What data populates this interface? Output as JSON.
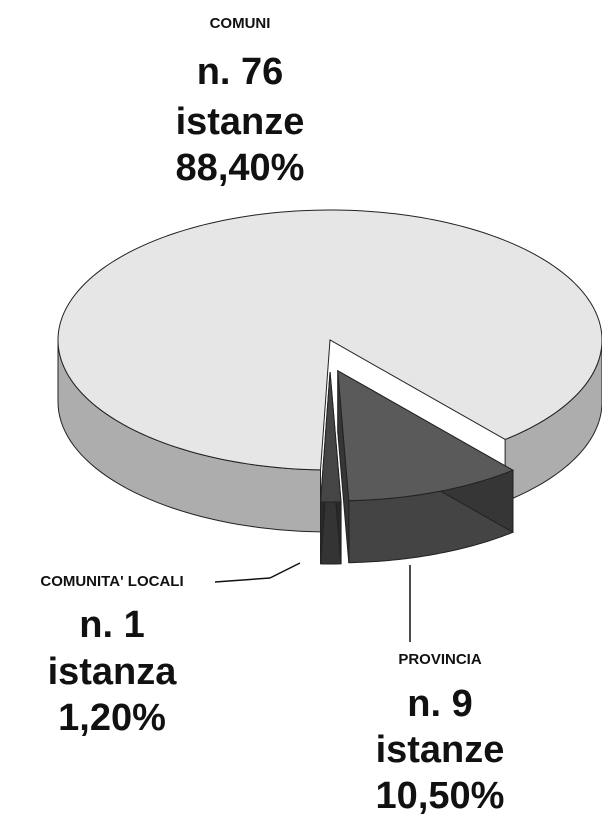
{
  "chart_data": {
    "type": "pie3d",
    "categories": [
      "COMUNI",
      "PROVINCIA",
      "COMUNITA' LOCALI"
    ],
    "values": [
      88.4,
      10.5,
      1.2
    ],
    "value_labels": [
      "88,40%",
      "10,50%",
      "1,20%"
    ],
    "count_labels": [
      "n. 76",
      "n. 9",
      "n. 1"
    ],
    "unit_labels": [
      "istanze",
      "istanze",
      "istanza"
    ],
    "colors": [
      "#e6e6e6",
      "#5a5a5a",
      "#454545"
    ]
  }
}
